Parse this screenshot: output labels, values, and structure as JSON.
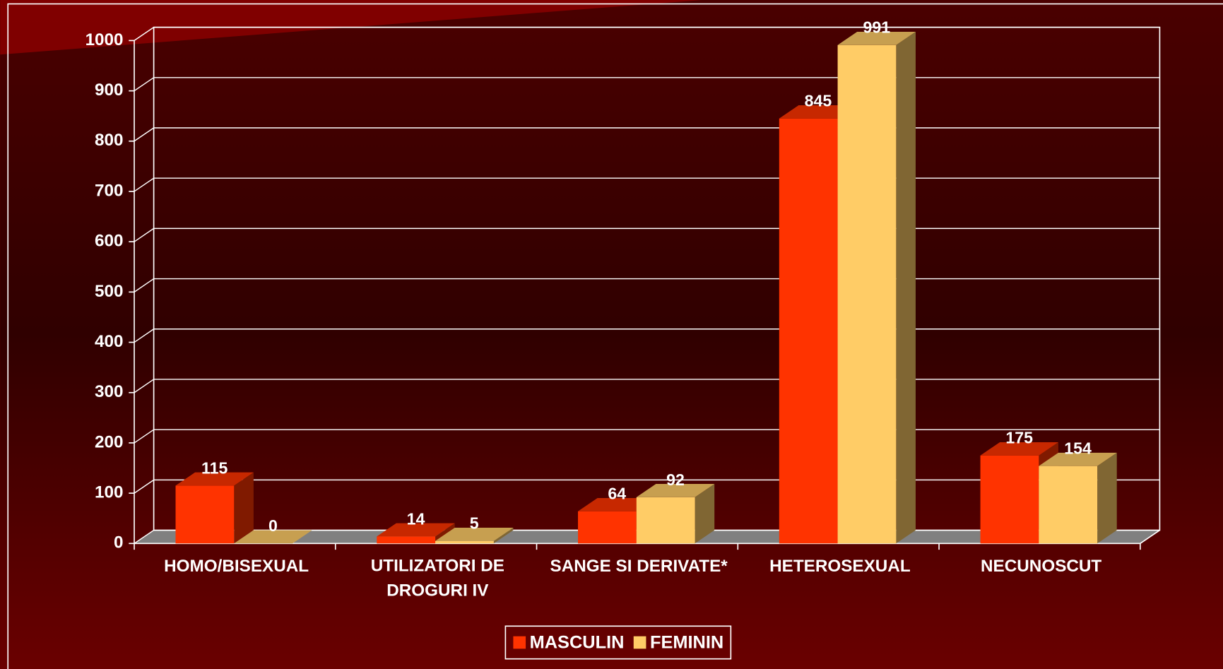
{
  "chart_data": {
    "type": "bar3d",
    "categories": [
      "HOMO/BISEXUAL",
      "UTILIZATORI DE\nDROGURI IV",
      "SANGE SI DERIVATE*",
      "HETEROSEXUAL",
      "NECUNOSCUT"
    ],
    "series": [
      {
        "name": "MASCULIN",
        "color": "#ff3300",
        "values": [
          115,
          14,
          64,
          845,
          175
        ]
      },
      {
        "name": "FEMININ",
        "color": "#ffcc66",
        "values": [
          0,
          5,
          92,
          991,
          154
        ]
      }
    ],
    "ylim": [
      0,
      1000
    ],
    "yticks": [
      0,
      100,
      200,
      300,
      400,
      500,
      600,
      700,
      800,
      900,
      1000
    ],
    "grid": true,
    "legend": "bottom"
  }
}
